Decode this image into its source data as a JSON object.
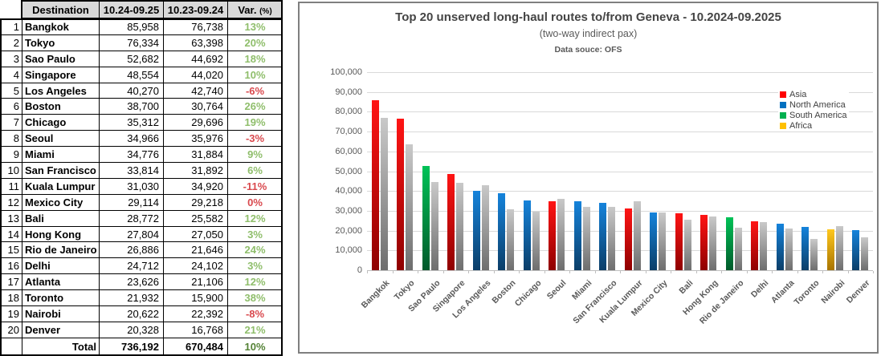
{
  "table": {
    "headers": {
      "destination": "Destination",
      "current": "10.24-09.25",
      "previous": "10.23-09.24",
      "var": "Var.",
      "var_unit": "(%)"
    },
    "rows": [
      {
        "rank": "1",
        "destination": "Bangkok",
        "current": "85,958",
        "previous": "76,738",
        "var": "13%"
      },
      {
        "rank": "2",
        "destination": "Tokyo",
        "current": "76,334",
        "previous": "63,398",
        "var": "20%"
      },
      {
        "rank": "3",
        "destination": "Sao Paulo",
        "current": "52,682",
        "previous": "44,692",
        "var": "18%"
      },
      {
        "rank": "4",
        "destination": "Singapore",
        "current": "48,554",
        "previous": "44,020",
        "var": "10%"
      },
      {
        "rank": "5",
        "destination": "Los Angeles",
        "current": "40,270",
        "previous": "42,740",
        "var": "-6%"
      },
      {
        "rank": "6",
        "destination": "Boston",
        "current": "38,700",
        "previous": "30,764",
        "var": "26%"
      },
      {
        "rank": "7",
        "destination": "Chicago",
        "current": "35,312",
        "previous": "29,696",
        "var": "19%"
      },
      {
        "rank": "8",
        "destination": "Seoul",
        "current": "34,966",
        "previous": "35,976",
        "var": "-3%"
      },
      {
        "rank": "9",
        "destination": "Miami",
        "current": "34,776",
        "previous": "31,884",
        "var": "9%"
      },
      {
        "rank": "10",
        "destination": "San Francisco",
        "current": "33,814",
        "previous": "31,892",
        "var": "6%"
      },
      {
        "rank": "11",
        "destination": "Kuala Lumpur",
        "current": "31,030",
        "previous": "34,920",
        "var": "-11%"
      },
      {
        "rank": "12",
        "destination": "Mexico City",
        "current": "29,114",
        "previous": "29,218",
        "var": "0%"
      },
      {
        "rank": "13",
        "destination": "Bali",
        "current": "28,772",
        "previous": "25,582",
        "var": "12%"
      },
      {
        "rank": "14",
        "destination": "Hong Kong",
        "current": "27,804",
        "previous": "27,050",
        "var": "3%"
      },
      {
        "rank": "15",
        "destination": "Rio de Janeiro",
        "current": "26,886",
        "previous": "21,646",
        "var": "24%"
      },
      {
        "rank": "16",
        "destination": "Delhi",
        "current": "24,712",
        "previous": "24,102",
        "var": "3%"
      },
      {
        "rank": "17",
        "destination": "Atlanta",
        "current": "23,626",
        "previous": "21,106",
        "var": "12%"
      },
      {
        "rank": "18",
        "destination": "Toronto",
        "current": "21,932",
        "previous": "15,900",
        "var": "38%"
      },
      {
        "rank": "19",
        "destination": "Nairobi",
        "current": "20,622",
        "previous": "22,392",
        "var": "-8%"
      },
      {
        "rank": "20",
        "destination": "Denver",
        "current": "20,328",
        "previous": "16,768",
        "var": "21%"
      }
    ],
    "total": {
      "label": "Total",
      "current": "736,192",
      "previous": "670,484",
      "var": "10%"
    }
  },
  "chart": {
    "title": "Top 20 unserved long-haul routes to/from Geneva - 10.2024-09.2025",
    "subtitle": "(two-way indirect pax)",
    "source": "Data souce: OFS",
    "legend": [
      {
        "label": "Asia",
        "color": "#FF0000"
      },
      {
        "label": "North America",
        "color": "#0070C0"
      },
      {
        "label": "South America",
        "color": "#00B050"
      },
      {
        "label": "Africa",
        "color": "#FFC000"
      }
    ]
  },
  "chart_data": {
    "type": "bar",
    "title": "Top 20 unserved long-haul routes to/from Geneva - 10.2024-09.2025",
    "subtitle": "(two-way indirect pax)",
    "categories": [
      "Bangkok",
      "Tokyo",
      "Sao Paulo",
      "Singapore",
      "Los Angeles",
      "Boston",
      "Chicago",
      "Seoul",
      "Miami",
      "San Francisco",
      "Kuala Lumpur",
      "Mexico City",
      "Bali",
      "Hong Kong",
      "Rio de Janeiro",
      "Delhi",
      "Atlanta",
      "Toronto",
      "Nairobi",
      "Denver"
    ],
    "series": [
      {
        "name": "10.24-09.25",
        "values": [
          85958,
          76334,
          52682,
          48554,
          40270,
          38700,
          35312,
          34966,
          34776,
          33814,
          31030,
          29114,
          28772,
          27804,
          26886,
          24712,
          23626,
          21932,
          20622,
          20328
        ]
      },
      {
        "name": "10.23-09.24",
        "values": [
          76738,
          63398,
          44692,
          44020,
          42740,
          30764,
          29696,
          35976,
          31884,
          31892,
          34920,
          29218,
          25582,
          27050,
          21646,
          24102,
          21106,
          15900,
          22392,
          16768
        ]
      }
    ],
    "continents": [
      "Asia",
      "Asia",
      "South America",
      "Asia",
      "North America",
      "North America",
      "North America",
      "Asia",
      "North America",
      "North America",
      "Asia",
      "North America",
      "Asia",
      "Asia",
      "South America",
      "Asia",
      "North America",
      "North America",
      "Africa",
      "North America"
    ],
    "continent_gradients": {
      "Asia": [
        "#FF1414",
        "#8E0000"
      ],
      "North America": [
        "#1583DB",
        "#0B3E68"
      ],
      "South America": [
        "#00C257",
        "#015A2B"
      ],
      "Africa": [
        "#FFC81E",
        "#A87400"
      ]
    },
    "previous_gradient": [
      "#C9C9C9",
      "#6E6E6E"
    ],
    "ylim": [
      0,
      100000
    ],
    "y_tick_step": 10000,
    "grid": true,
    "legend_position": "right-inside"
  },
  "colors": {
    "var_positive": "#8FBE6B",
    "var_negative": "#D9494E",
    "var_total": "#548235",
    "header_bg": "#D9D9D9",
    "grid": "#D9D9D9",
    "axis": "#BFBFBF"
  }
}
